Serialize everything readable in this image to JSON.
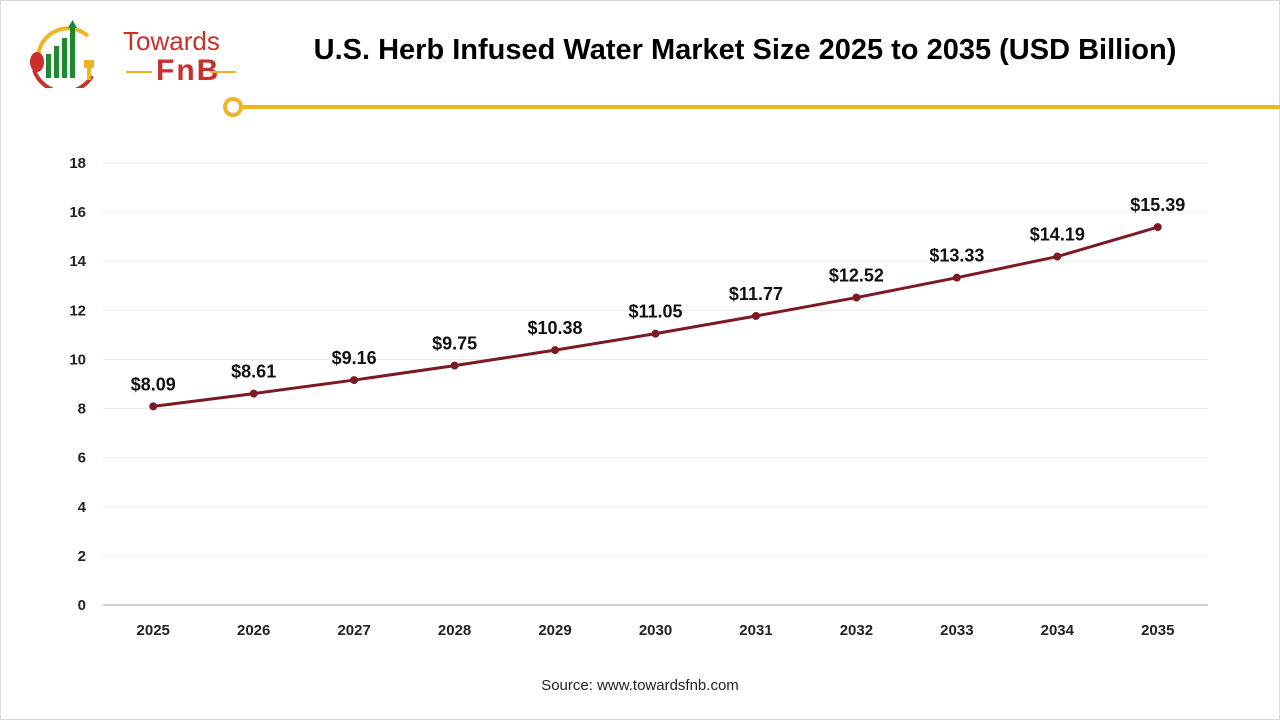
{
  "header": {
    "logo_line1": "Towards",
    "logo_line2": "FnB",
    "title": "U.S. Herb Infused Water Market Size 2025 to 2035 (USD Billion)"
  },
  "footer": {
    "source": "Source: www.towardsfnb.com"
  },
  "colors": {
    "line": "#7b1a24",
    "accent": "#f0b323",
    "logo_red": "#c9302c",
    "logo_green": "#1e8a2e"
  },
  "chart_data": {
    "type": "line",
    "title": "U.S. Herb Infused Water Market Size 2025 to 2035 (USD Billion)",
    "categories": [
      "2025",
      "2026",
      "2027",
      "2028",
      "2029",
      "2030",
      "2031",
      "2032",
      "2033",
      "2034",
      "2035"
    ],
    "values": [
      8.09,
      8.61,
      9.16,
      9.75,
      10.38,
      11.05,
      11.77,
      12.52,
      13.33,
      14.19,
      15.39
    ],
    "data_labels": [
      "$8.09",
      "$8.61",
      "$9.16",
      "$9.75",
      "$10.38",
      "$11.05",
      "$11.77",
      "$12.52",
      "$13.33",
      "$14.19",
      "$15.39"
    ],
    "yticks": [
      "0",
      "2",
      "4",
      "6",
      "8",
      "10",
      "12",
      "14",
      "16",
      "18"
    ],
    "ylim": [
      0,
      18
    ],
    "grid": true,
    "legend": "none"
  }
}
